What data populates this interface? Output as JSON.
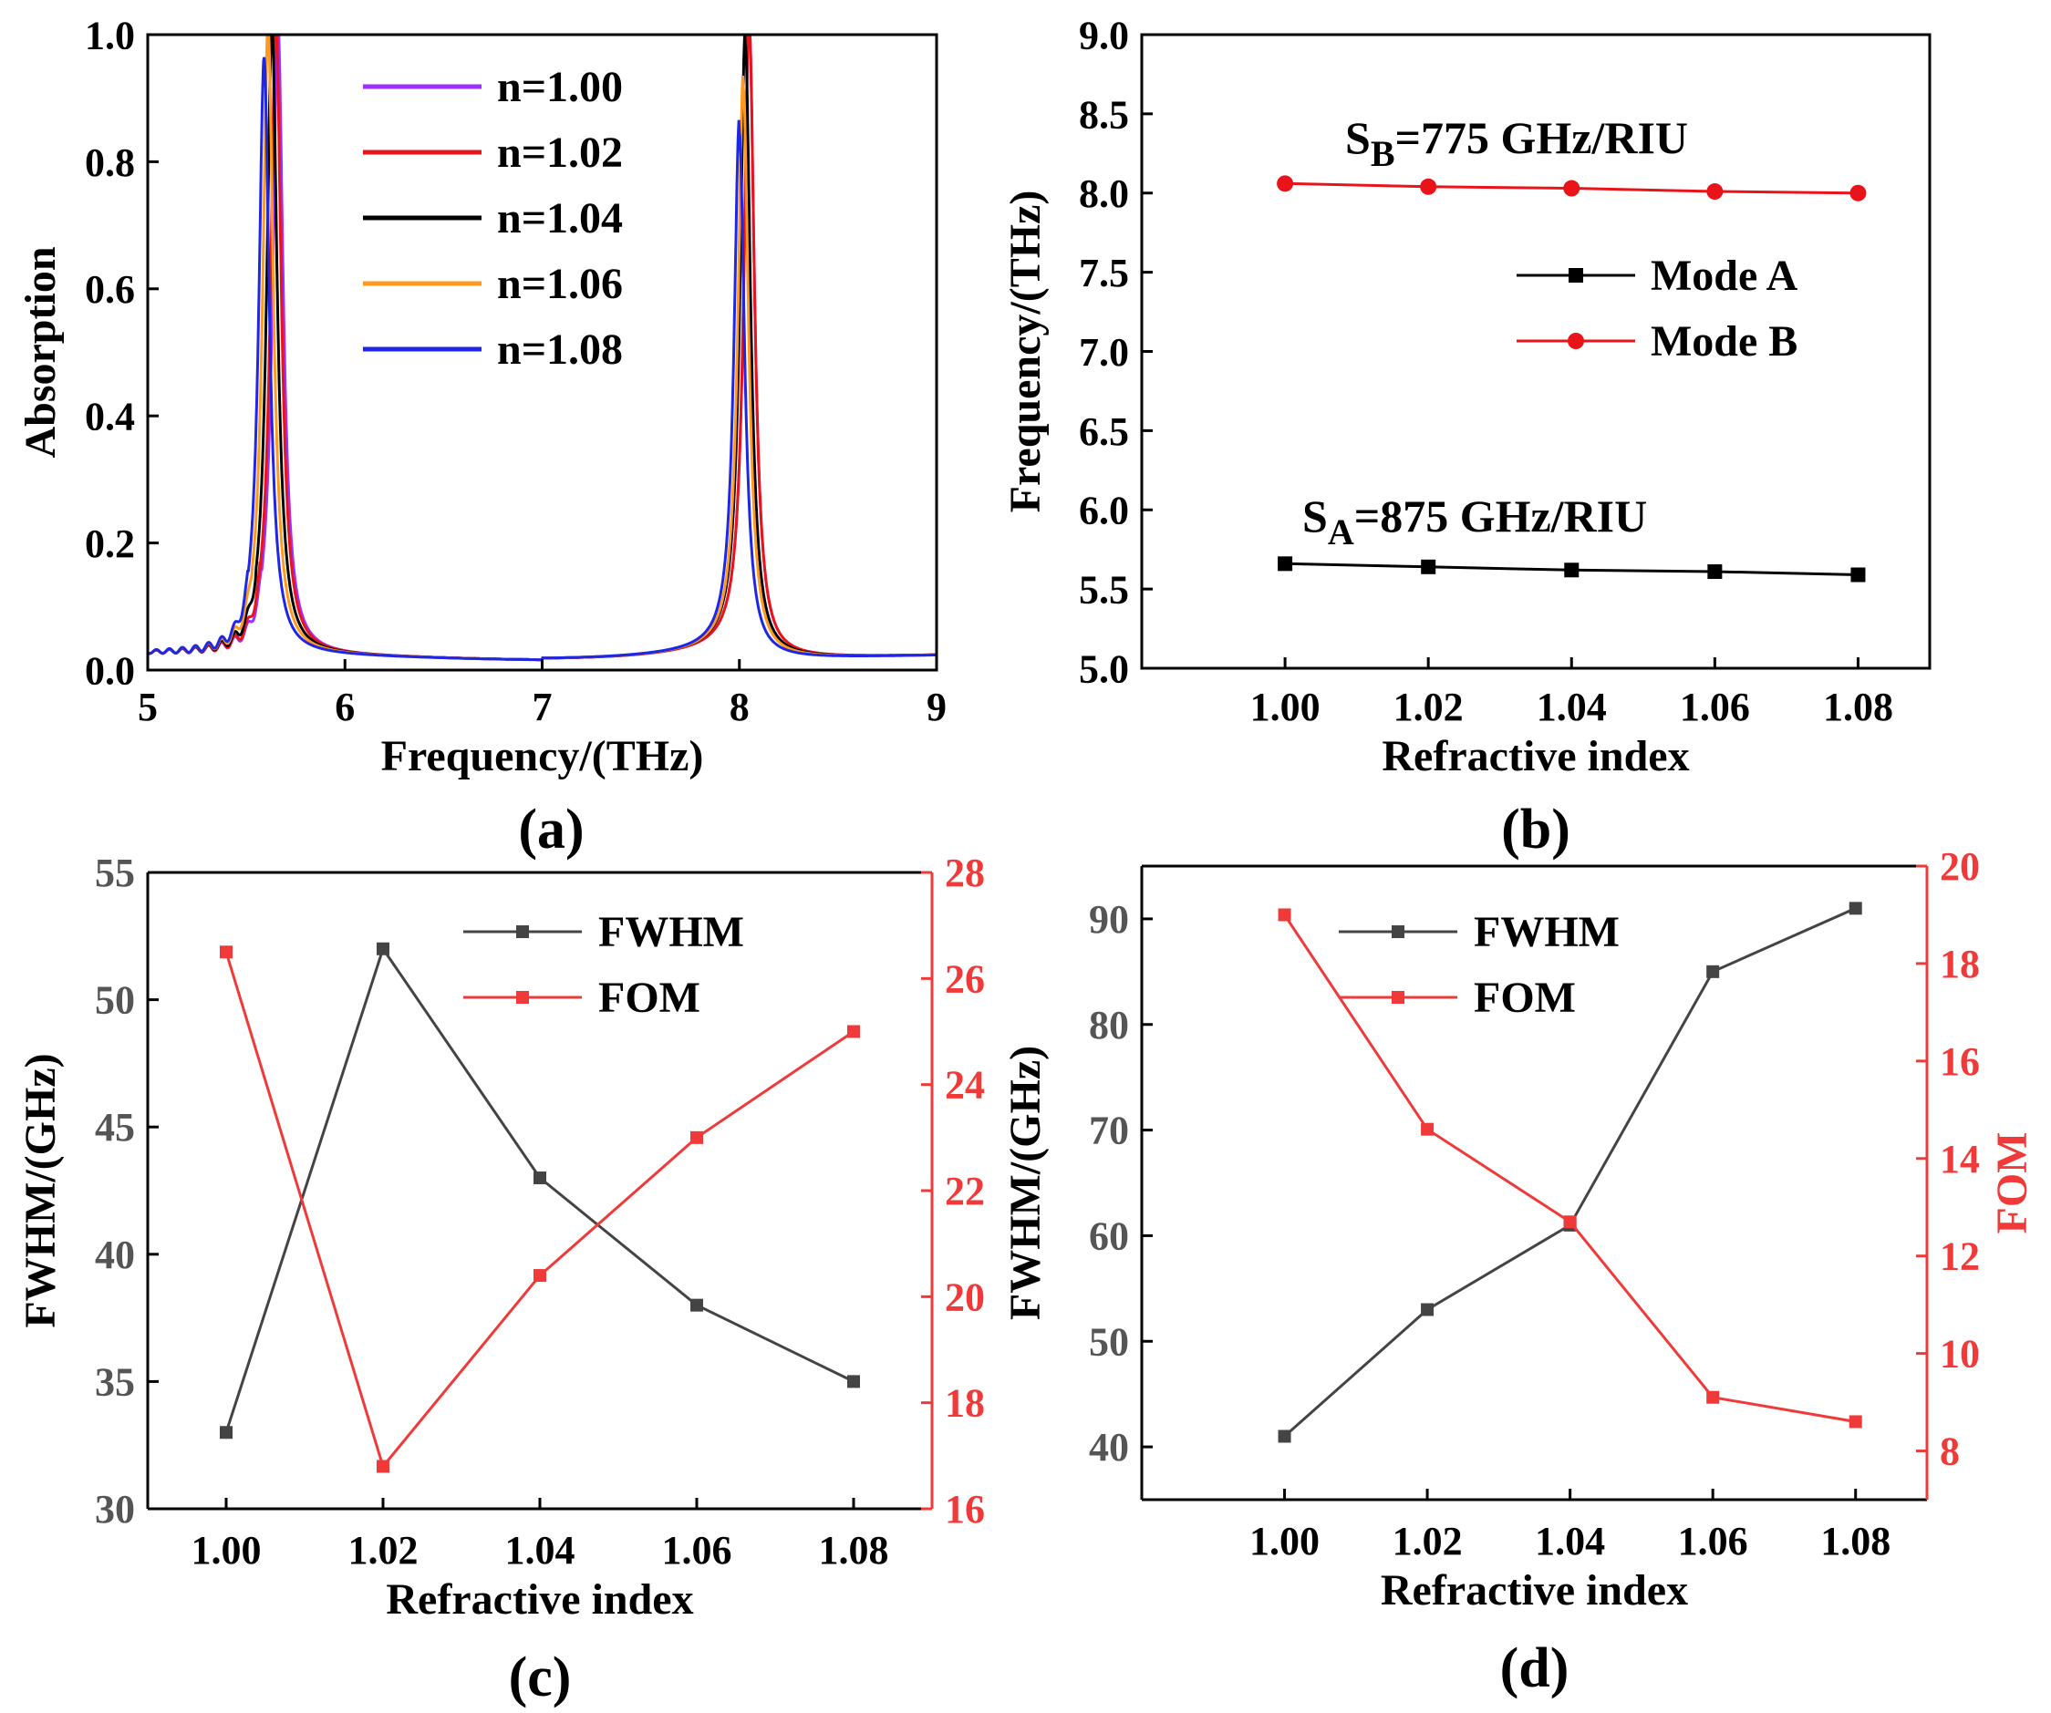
{
  "panels": {
    "a": {
      "label": "(a)"
    },
    "b": {
      "label": "(b)"
    },
    "c": {
      "label": "(c)"
    },
    "d": {
      "label": "(d)"
    }
  },
  "colors": {
    "n100": "#9b30ff",
    "n102": "#e8141a",
    "n104": "#000000",
    "n106": "#ff9a1f",
    "n108": "#1f27e6",
    "modeA": "#000000",
    "modeB": "#e8141a",
    "fwhm": "#444444",
    "fom": "#f03a3a"
  },
  "chart_data": [
    {
      "id": "a",
      "type": "line",
      "xlabel": "Frequency/(THz)",
      "ylabel": "Absorption",
      "xlim": [
        5,
        9
      ],
      "ylim": [
        0,
        1.0
      ],
      "xticks": [
        "5",
        "6",
        "7",
        "8",
        "9"
      ],
      "yticks": [
        "0.0",
        "0.2",
        "0.4",
        "0.6",
        "0.8",
        "1.0"
      ],
      "legend_position": "top-center",
      "series": [
        {
          "name": "n=1.00",
          "peak1": {
            "f": 5.66,
            "a": 1.0
          },
          "peak2": {
            "f": 8.05,
            "a": 1.0
          }
        },
        {
          "name": "n=1.02",
          "peak1": {
            "f": 5.65,
            "a": 1.0
          },
          "peak2": {
            "f": 8.05,
            "a": 1.0
          }
        },
        {
          "name": "n=1.04",
          "peak1": {
            "f": 5.63,
            "a": 0.99
          },
          "peak2": {
            "f": 8.03,
            "a": 0.97
          }
        },
        {
          "name": "n=1.06",
          "peak1": {
            "f": 5.61,
            "a": 0.99
          },
          "peak2": {
            "f": 8.02,
            "a": 0.9
          }
        },
        {
          "name": "n=1.08",
          "peak1": {
            "f": 5.59,
            "a": 0.94
          },
          "peak2": {
            "f": 8.0,
            "a": 0.83
          }
        }
      ]
    },
    {
      "id": "b",
      "type": "line",
      "xlabel": "Refractive index",
      "ylabel": "Frequency/(THz)",
      "xlim": [
        0.98,
        1.09
      ],
      "ylim": [
        5.0,
        9.0
      ],
      "xticks": [
        "1.00",
        "1.02",
        "1.04",
        "1.06",
        "1.08"
      ],
      "yticks": [
        "5.0",
        "5.5",
        "6.0",
        "6.5",
        "7.0",
        "7.5",
        "8.0",
        "8.5",
        "9.0"
      ],
      "legend_position": "right",
      "x": [
        1.0,
        1.02,
        1.04,
        1.06,
        1.08
      ],
      "series": [
        {
          "name": "Mode A",
          "values": [
            5.66,
            5.64,
            5.62,
            5.61,
            5.59
          ]
        },
        {
          "name": "Mode B",
          "values": [
            8.06,
            8.04,
            8.03,
            8.01,
            8.0
          ]
        }
      ],
      "annotations": {
        "sb_main": "S",
        "sb_sub": "B",
        "sb_rest": "=775 GHz/RIU",
        "sa_main": "S",
        "sa_sub": "A",
        "sa_rest": "=875 GHz/RIU"
      }
    },
    {
      "id": "c",
      "type": "line",
      "xlabel": "Refractive index",
      "ylabel": "FWHM/(GHz)",
      "ylabel_right": "",
      "xlim": [
        0.99,
        1.09
      ],
      "ylim": [
        30,
        55
      ],
      "ylim_right": [
        16,
        28
      ],
      "xticks": [
        "1.00",
        "1.02",
        "1.04",
        "1.06",
        "1.08"
      ],
      "yticks": [
        "30",
        "35",
        "40",
        "45",
        "50",
        "55"
      ],
      "yticks_right": [
        "16",
        "18",
        "20",
        "22",
        "24",
        "26",
        "28"
      ],
      "legend_position": "top-right",
      "x": [
        1.0,
        1.02,
        1.04,
        1.06,
        1.08
      ],
      "series": [
        {
          "name": "FWHM",
          "axis": "left",
          "values": [
            33,
            52,
            43,
            38,
            35
          ]
        },
        {
          "name": "FOM",
          "axis": "right",
          "values": [
            26.5,
            16.8,
            20.4,
            23.0,
            25.0
          ]
        }
      ]
    },
    {
      "id": "d",
      "type": "line",
      "xlabel": "Refractive index",
      "ylabel": "FWHM/(GHz)",
      "ylabel_right": "FOM",
      "xlim": [
        0.98,
        1.09
      ],
      "ylim": [
        35,
        95
      ],
      "ylim_right": [
        7,
        20
      ],
      "xticks": [
        "1.00",
        "1.02",
        "1.04",
        "1.06",
        "1.08"
      ],
      "yticks": [
        "40",
        "50",
        "60",
        "70",
        "80",
        "90"
      ],
      "yticks_right": [
        "8",
        "10",
        "12",
        "14",
        "16",
        "18",
        "20"
      ],
      "legend_position": "top-right",
      "x": [
        1.0,
        1.02,
        1.04,
        1.06,
        1.08
      ],
      "series": [
        {
          "name": "FWHM",
          "axis": "left",
          "values": [
            41,
            53,
            61,
            85,
            91
          ]
        },
        {
          "name": "FOM",
          "axis": "right",
          "values": [
            19.0,
            14.6,
            12.7,
            9.1,
            8.6
          ]
        }
      ]
    }
  ]
}
